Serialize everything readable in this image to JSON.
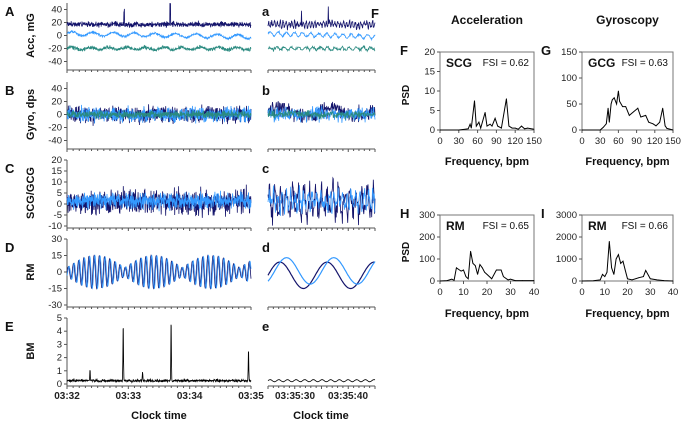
{
  "colors": {
    "navy": "#14146b",
    "blue": "#3399ff",
    "teal": "#2a8a80",
    "black": "#000000"
  },
  "stray_letter": "F",
  "chart_data": [
    {
      "id": "A",
      "type": "line",
      "letter": "A",
      "ylabel": "Acc, mG",
      "ylim": [
        -50,
        50
      ],
      "yticks": [
        40,
        20,
        0,
        -20,
        -40
      ],
      "xlim": [
        "03:32",
        "03:35"
      ],
      "series_colors": [
        "navy",
        "blue",
        "teal"
      ]
    },
    {
      "id": "B",
      "type": "line",
      "letter": "B",
      "ylabel": "Gyro, dps",
      "ylim": [
        -50,
        50
      ],
      "yticks": [
        40,
        20,
        0,
        -20,
        -40
      ],
      "xlim": [
        "03:32",
        "03:35"
      ],
      "series_colors": [
        "navy",
        "blue",
        "teal"
      ]
    },
    {
      "id": "C",
      "type": "line",
      "letter": "C",
      "ylabel": "SCG/GCG",
      "ylim": [
        -10,
        20
      ],
      "yticks": [
        20,
        15,
        10,
        5,
        0,
        -5,
        -10
      ],
      "xlim": [
        "03:32",
        "03:35"
      ],
      "series_colors": [
        "navy",
        "blue"
      ]
    },
    {
      "id": "D",
      "type": "line",
      "letter": "D",
      "ylabel": "RM",
      "ylim": [
        -30,
        30
      ],
      "yticks": [
        30,
        15,
        0,
        -15,
        -30
      ],
      "xlim": [
        "03:32",
        "03:35"
      ],
      "series_colors": [
        "navy",
        "blue"
      ]
    },
    {
      "id": "E",
      "type": "line",
      "letter": "E",
      "ylabel": "BM",
      "ylim": [
        0,
        5
      ],
      "yticks": [
        5,
        4,
        3,
        2,
        1,
        0
      ],
      "xlim": [
        "03:32",
        "03:35"
      ],
      "xticks": [
        "03:32",
        "03:33",
        "03:34",
        "03:35"
      ],
      "xlabel": "Clock time",
      "series_colors": [
        "black"
      ]
    },
    {
      "id": "a",
      "type": "line",
      "letter": "a",
      "series_colors": [
        "navy",
        "blue",
        "teal"
      ]
    },
    {
      "id": "b",
      "type": "line",
      "letter": "b",
      "series_colors": [
        "navy",
        "blue",
        "teal"
      ]
    },
    {
      "id": "c",
      "type": "line",
      "letter": "c",
      "series_colors": [
        "navy",
        "blue"
      ]
    },
    {
      "id": "d",
      "type": "line",
      "letter": "d",
      "series_colors": [
        "navy",
        "blue"
      ]
    },
    {
      "id": "e",
      "type": "line",
      "letter": "e",
      "xticks": [
        "03:35:30",
        "03:35:40"
      ],
      "xlabel": "Clock time",
      "series_colors": [
        "black"
      ]
    },
    {
      "id": "F",
      "type": "line",
      "letter": "F",
      "column_title": "Acceleration",
      "label": "SCG",
      "fsi": "FSI = 0.62",
      "ylabel": "PSD",
      "xlabel": "Frequency, bpm",
      "xlim": [
        0,
        150
      ],
      "ylim": [
        0,
        20
      ],
      "xticks": [
        0,
        30,
        60,
        90,
        120,
        150
      ],
      "yticks": [
        0,
        5,
        10,
        15,
        20
      ],
      "x": [
        30,
        40,
        45,
        48,
        50,
        55,
        58,
        62,
        65,
        72,
        75,
        80,
        83,
        88,
        92,
        98,
        106,
        110,
        115,
        120,
        125,
        130,
        135,
        140,
        150
      ],
      "y": [
        0,
        0.2,
        0.3,
        1.5,
        0.5,
        7.5,
        1,
        2,
        0.5,
        4.5,
        1,
        1.5,
        1,
        3,
        1,
        0.5,
        8,
        1,
        0.5,
        0.5,
        0.2,
        1,
        0.3,
        0.5,
        0.2
      ]
    },
    {
      "id": "G",
      "type": "line",
      "letter": "G",
      "column_title": "Gyroscopy",
      "label": "GCG",
      "fsi": "FSI = 0.63",
      "xlabel": "Frequency, bpm",
      "xlim": [
        0,
        150
      ],
      "ylim": [
        0,
        150
      ],
      "xticks": [
        0,
        30,
        60,
        90,
        120,
        150
      ],
      "yticks": [
        0,
        50,
        100,
        150
      ],
      "x": [
        30,
        35,
        40,
        43,
        45,
        48,
        50,
        53,
        57,
        60,
        62,
        67,
        72,
        78,
        85,
        92,
        97,
        105,
        110,
        117,
        122,
        128,
        133,
        137,
        140,
        150
      ],
      "y": [
        0,
        5,
        12,
        42,
        15,
        50,
        58,
        62,
        50,
        75,
        55,
        45,
        45,
        28,
        35,
        42,
        25,
        28,
        15,
        12,
        8,
        15,
        42,
        8,
        3,
        0
      ]
    },
    {
      "id": "H",
      "type": "line",
      "letter": "H",
      "label": "RM",
      "fsi": "FSI = 0.65",
      "ylabel": "PSD",
      "xlabel": "Frequency, bpm",
      "xlim": [
        0,
        40
      ],
      "ylim": [
        0,
        300
      ],
      "xticks": [
        0,
        10,
        20,
        30,
        40
      ],
      "yticks": [
        0,
        100,
        200,
        300
      ],
      "x": [
        3,
        5,
        6,
        7,
        9,
        10,
        11,
        12,
        13,
        14,
        15,
        16,
        17,
        18,
        19,
        20,
        22,
        24,
        26,
        27,
        29,
        30,
        32,
        35,
        40
      ],
      "y": [
        2,
        8,
        3,
        60,
        45,
        50,
        20,
        10,
        135,
        80,
        70,
        30,
        75,
        60,
        40,
        30,
        10,
        50,
        50,
        20,
        5,
        8,
        2,
        2,
        2
      ]
    },
    {
      "id": "I",
      "type": "line",
      "letter": "I",
      "label": "RM",
      "fsi": "FSI = 0.66",
      "xlabel": "Frequency, bpm",
      "xlim": [
        0,
        40
      ],
      "ylim": [
        0,
        3000
      ],
      "xticks": [
        0,
        10,
        20,
        30,
        40
      ],
      "yticks": [
        0,
        1000,
        2000,
        3000
      ],
      "x": [
        5,
        8,
        9,
        10,
        11,
        12,
        13,
        14,
        15,
        16,
        17,
        18,
        19,
        20,
        22,
        25,
        27,
        28,
        30,
        33,
        36,
        40
      ],
      "y": [
        10,
        50,
        300,
        200,
        400,
        1800,
        600,
        300,
        1000,
        1200,
        800,
        900,
        500,
        100,
        50,
        150,
        200,
        480,
        100,
        50,
        20,
        0
      ]
    }
  ]
}
